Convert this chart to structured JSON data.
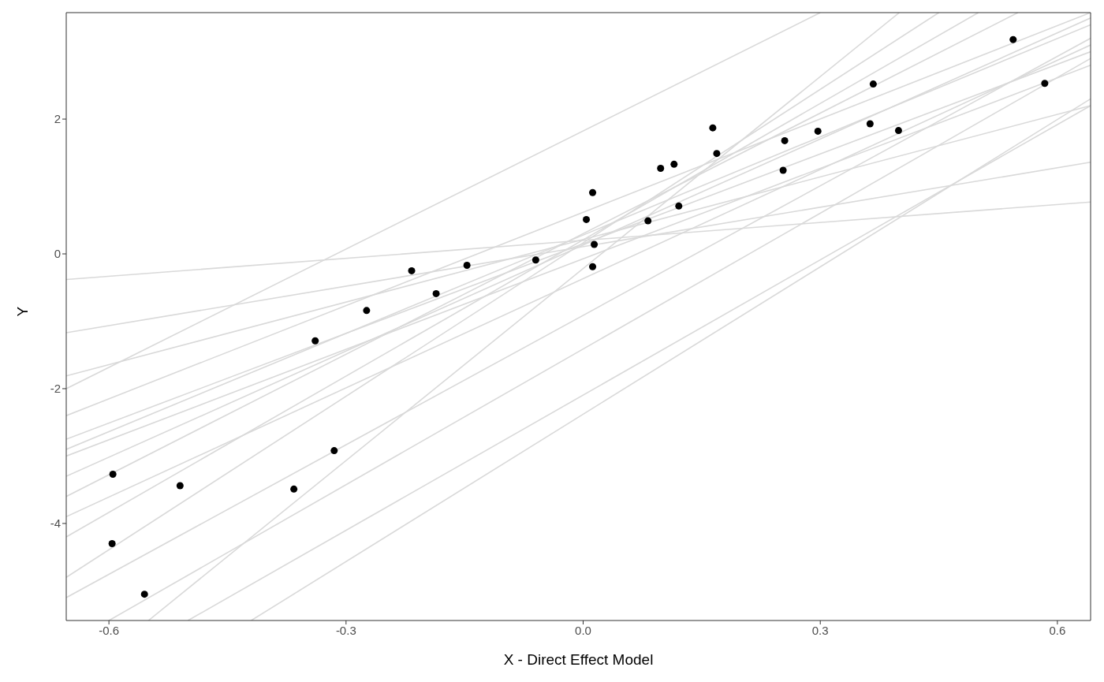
{
  "chart_data": {
    "type": "scatter",
    "xlabel": "X - Direct Effect Model",
    "ylabel": "Y",
    "xlim": [
      -0.654,
      0.642
    ],
    "ylim": [
      -5.44,
      3.58
    ],
    "xticks": [
      -0.6,
      -0.3,
      {
        "value": 0,
        "label": "0.0"
      },
      0.3,
      0.6
    ],
    "yticks": [
      -4,
      -2,
      0,
      2
    ],
    "marker": "circle",
    "series": [
      {
        "type": "line",
        "color": "#d9d9d9",
        "marker": "none",
        "x": [
          -0.654,
          0.642
        ],
        "values": [
          -0.38,
          0.77
        ]
      },
      {
        "type": "line",
        "color": "#d9d9d9",
        "marker": "none",
        "x": [
          -0.654,
          0.642
        ],
        "values": [
          -1.17,
          1.36
        ]
      },
      {
        "type": "line",
        "color": "#d9d9d9",
        "marker": "none",
        "x": [
          -0.654,
          0.642
        ],
        "values": [
          -1.81,
          2.2
        ]
      },
      {
        "type": "line",
        "color": "#d9d9d9",
        "marker": "none",
        "x": [
          -0.654,
          0.642
        ],
        "values": [
          -2.75,
          3.0
        ]
      },
      {
        "type": "line",
        "color": "#d9d9d9",
        "marker": "none",
        "x": [
          -0.654,
          0.642
        ],
        "values": [
          -2.9,
          3.4
        ]
      },
      {
        "type": "line",
        "color": "#d9d9d9",
        "marker": "none",
        "x": [
          -0.654,
          0.642
        ],
        "values": [
          -3.3,
          3.5
        ]
      },
      {
        "type": "line",
        "color": "#d9d9d9",
        "marker": "none",
        "x": [
          -0.654,
          0.55
        ],
        "values": [
          -3.6,
          3.58
        ]
      },
      {
        "type": "line",
        "color": "#d9d9d9",
        "marker": "none",
        "x": [
          -0.654,
          0.5
        ],
        "values": [
          -4.2,
          3.58
        ]
      },
      {
        "type": "line",
        "color": "#d9d9d9",
        "marker": "none",
        "x": [
          -0.654,
          0.45
        ],
        "values": [
          -4.8,
          3.58
        ]
      },
      {
        "type": "line",
        "color": "#d9d9d9",
        "marker": "none",
        "x": [
          -0.654,
          0.642
        ],
        "values": [
          -5.1,
          3.2
        ]
      },
      {
        "type": "line",
        "color": "#d9d9d9",
        "marker": "none",
        "x": [
          -0.6,
          0.642
        ],
        "values": [
          -5.44,
          2.9
        ]
      },
      {
        "type": "line",
        "color": "#d9d9d9",
        "marker": "none",
        "x": [
          -0.5,
          0.642
        ],
        "values": [
          -5.44,
          2.2
        ]
      },
      {
        "type": "line",
        "color": "#d9d9d9",
        "marker": "none",
        "x": [
          -0.42,
          0.642
        ],
        "values": [
          -5.44,
          2.3
        ]
      },
      {
        "type": "line",
        "color": "#d9d9d9",
        "marker": "none",
        "x": [
          -0.654,
          0.3
        ],
        "values": [
          -2.0,
          3.58
        ]
      },
      {
        "type": "line",
        "color": "#d9d9d9",
        "marker": "none",
        "x": [
          -0.654,
          0.642
        ],
        "values": [
          -2.4,
          3.58
        ]
      },
      {
        "type": "line",
        "color": "#d9d9d9",
        "marker": "none",
        "x": [
          -0.654,
          0.642
        ],
        "values": [
          -3.0,
          2.8
        ]
      },
      {
        "type": "line",
        "color": "#d9d9d9",
        "marker": "none",
        "x": [
          -0.654,
          0.642
        ],
        "values": [
          -3.9,
          3.1
        ]
      },
      {
        "type": "line",
        "color": "#d9d9d9",
        "marker": "none",
        "x": [
          -0.55,
          0.4
        ],
        "values": [
          -5.44,
          3.58
        ]
      },
      {
        "type": "scatter",
        "color": "#000000",
        "x": [
          0.544,
          0.584,
          0.367,
          0.164,
          0.169,
          0.255,
          0.297,
          0.363,
          0.399,
          0.253,
          0.098,
          0.115,
          0.121,
          0.082,
          0.012,
          0.004,
          0.014,
          0.012,
          -0.06,
          -0.147,
          -0.186,
          -0.217,
          -0.274,
          -0.339,
          -0.315,
          -0.366,
          -0.51,
          -0.595,
          -0.596,
          -0.555
        ],
        "values": [
          3.18,
          2.53,
          2.52,
          1.87,
          1.49,
          1.68,
          1.82,
          1.93,
          1.83,
          1.24,
          1.27,
          1.33,
          0.71,
          0.49,
          0.91,
          0.51,
          0.14,
          -0.19,
          -0.09,
          -0.17,
          -0.59,
          -0.25,
          -0.84,
          -1.29,
          -2.92,
          -3.49,
          -3.44,
          -3.27,
          -4.3,
          -5.05
        ]
      }
    ]
  }
}
